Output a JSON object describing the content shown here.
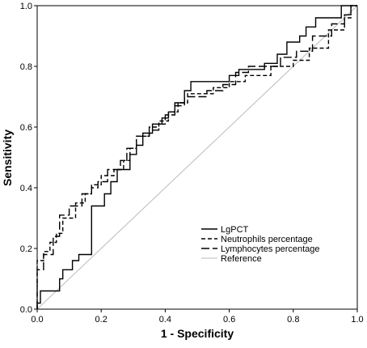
{
  "chart_data": {
    "type": "line",
    "title": "",
    "xlabel": "1 - Specificity",
    "ylabel": "Sensitivity",
    "xlim": [
      0,
      1
    ],
    "ylim": [
      0,
      1
    ],
    "xticks": [
      "0.0",
      "0.2",
      "0.4",
      "0.6",
      "0.8",
      "1.0"
    ],
    "yticks": [
      "0.0",
      "0.2",
      "0.4",
      "0.6",
      "0.8",
      "1.0"
    ],
    "grid": false,
    "legend_position": "bottom-right",
    "series": [
      {
        "name": "LgPCT",
        "style": "solid",
        "color": "#000000",
        "points": [
          [
            0,
            0
          ],
          [
            0,
            0.02
          ],
          [
            0.01,
            0.02
          ],
          [
            0.01,
            0.06
          ],
          [
            0.07,
            0.06
          ],
          [
            0.07,
            0.1
          ],
          [
            0.08,
            0.1
          ],
          [
            0.08,
            0.13
          ],
          [
            0.11,
            0.13
          ],
          [
            0.11,
            0.16
          ],
          [
            0.13,
            0.16
          ],
          [
            0.13,
            0.18
          ],
          [
            0.17,
            0.18
          ],
          [
            0.17,
            0.34
          ],
          [
            0.21,
            0.34
          ],
          [
            0.21,
            0.38
          ],
          [
            0.23,
            0.38
          ],
          [
            0.23,
            0.42
          ],
          [
            0.25,
            0.42
          ],
          [
            0.25,
            0.46
          ],
          [
            0.29,
            0.46
          ],
          [
            0.29,
            0.51
          ],
          [
            0.31,
            0.51
          ],
          [
            0.31,
            0.54
          ],
          [
            0.33,
            0.54
          ],
          [
            0.33,
            0.58
          ],
          [
            0.36,
            0.58
          ],
          [
            0.36,
            0.61
          ],
          [
            0.39,
            0.61
          ],
          [
            0.39,
            0.63
          ],
          [
            0.41,
            0.63
          ],
          [
            0.41,
            0.65
          ],
          [
            0.43,
            0.65
          ],
          [
            0.43,
            0.68
          ],
          [
            0.46,
            0.68
          ],
          [
            0.46,
            0.72
          ],
          [
            0.48,
            0.72
          ],
          [
            0.48,
            0.75
          ],
          [
            0.6,
            0.75
          ],
          [
            0.6,
            0.77
          ],
          [
            0.63,
            0.77
          ],
          [
            0.63,
            0.79
          ],
          [
            0.71,
            0.79
          ],
          [
            0.71,
            0.81
          ],
          [
            0.75,
            0.81
          ],
          [
            0.75,
            0.84
          ],
          [
            0.78,
            0.84
          ],
          [
            0.78,
            0.88
          ],
          [
            0.82,
            0.88
          ],
          [
            0.82,
            0.9
          ],
          [
            0.84,
            0.9
          ],
          [
            0.84,
            0.93
          ],
          [
            0.87,
            0.93
          ],
          [
            0.87,
            0.96
          ],
          [
            0.95,
            0.96
          ],
          [
            0.95,
            1.0
          ],
          [
            1,
            1.0
          ]
        ]
      },
      {
        "name": "Neutrophils percentage",
        "style": "dashed",
        "color": "#000000",
        "points": [
          [
            0,
            0
          ],
          [
            0,
            0.16
          ],
          [
            0.02,
            0.16
          ],
          [
            0.02,
            0.19
          ],
          [
            0.04,
            0.19
          ],
          [
            0.04,
            0.22
          ],
          [
            0.06,
            0.22
          ],
          [
            0.06,
            0.25
          ],
          [
            0.08,
            0.25
          ],
          [
            0.08,
            0.3
          ],
          [
            0.12,
            0.3
          ],
          [
            0.12,
            0.35
          ],
          [
            0.15,
            0.35
          ],
          [
            0.15,
            0.38
          ],
          [
            0.17,
            0.38
          ],
          [
            0.17,
            0.41
          ],
          [
            0.2,
            0.41
          ],
          [
            0.2,
            0.44
          ],
          [
            0.24,
            0.44
          ],
          [
            0.24,
            0.46
          ],
          [
            0.27,
            0.46
          ],
          [
            0.27,
            0.49
          ],
          [
            0.29,
            0.49
          ],
          [
            0.29,
            0.53
          ],
          [
            0.31,
            0.53
          ],
          [
            0.31,
            0.57
          ],
          [
            0.35,
            0.57
          ],
          [
            0.35,
            0.6
          ],
          [
            0.38,
            0.6
          ],
          [
            0.38,
            0.62
          ],
          [
            0.41,
            0.62
          ],
          [
            0.41,
            0.65
          ],
          [
            0.44,
            0.65
          ],
          [
            0.44,
            0.68
          ],
          [
            0.47,
            0.68
          ],
          [
            0.47,
            0.71
          ],
          [
            0.55,
            0.71
          ],
          [
            0.55,
            0.73
          ],
          [
            0.6,
            0.73
          ],
          [
            0.6,
            0.75
          ],
          [
            0.65,
            0.75
          ],
          [
            0.65,
            0.77
          ],
          [
            0.73,
            0.77
          ],
          [
            0.73,
            0.8
          ],
          [
            0.8,
            0.8
          ],
          [
            0.8,
            0.82
          ],
          [
            0.85,
            0.82
          ],
          [
            0.85,
            0.86
          ],
          [
            0.91,
            0.86
          ],
          [
            0.91,
            0.92
          ],
          [
            0.96,
            0.92
          ],
          [
            0.96,
            0.96
          ],
          [
            0.98,
            0.96
          ],
          [
            0.98,
            1.0
          ],
          [
            1,
            1.0
          ]
        ]
      },
      {
        "name": "Lymphocytes percentage",
        "style": "longdash",
        "color": "#000000",
        "points": [
          [
            0,
            0
          ],
          [
            0,
            0.13
          ],
          [
            0.02,
            0.13
          ],
          [
            0.02,
            0.18
          ],
          [
            0.05,
            0.18
          ],
          [
            0.05,
            0.24
          ],
          [
            0.07,
            0.24
          ],
          [
            0.07,
            0.31
          ],
          [
            0.1,
            0.31
          ],
          [
            0.1,
            0.34
          ],
          [
            0.14,
            0.34
          ],
          [
            0.14,
            0.38
          ],
          [
            0.17,
            0.38
          ],
          [
            0.17,
            0.4
          ],
          [
            0.19,
            0.4
          ],
          [
            0.19,
            0.42
          ],
          [
            0.22,
            0.42
          ],
          [
            0.22,
            0.46
          ],
          [
            0.26,
            0.46
          ],
          [
            0.26,
            0.49
          ],
          [
            0.28,
            0.49
          ],
          [
            0.28,
            0.53
          ],
          [
            0.31,
            0.53
          ],
          [
            0.31,
            0.57
          ],
          [
            0.35,
            0.57
          ],
          [
            0.35,
            0.59
          ],
          [
            0.38,
            0.59
          ],
          [
            0.38,
            0.61
          ],
          [
            0.4,
            0.61
          ],
          [
            0.4,
            0.64
          ],
          [
            0.43,
            0.64
          ],
          [
            0.43,
            0.67
          ],
          [
            0.46,
            0.67
          ],
          [
            0.46,
            0.7
          ],
          [
            0.53,
            0.7
          ],
          [
            0.53,
            0.72
          ],
          [
            0.58,
            0.72
          ],
          [
            0.58,
            0.74
          ],
          [
            0.62,
            0.74
          ],
          [
            0.62,
            0.78
          ],
          [
            0.66,
            0.78
          ],
          [
            0.66,
            0.8
          ],
          [
            0.76,
            0.8
          ],
          [
            0.76,
            0.83
          ],
          [
            0.81,
            0.83
          ],
          [
            0.81,
            0.85
          ],
          [
            0.86,
            0.85
          ],
          [
            0.86,
            0.9
          ],
          [
            0.92,
            0.9
          ],
          [
            0.92,
            0.94
          ],
          [
            0.96,
            0.94
          ],
          [
            0.96,
            0.97
          ],
          [
            0.98,
            0.97
          ],
          [
            0.98,
            1.0
          ],
          [
            1,
            1.0
          ]
        ]
      },
      {
        "name": "Reference",
        "style": "solid",
        "color": "#bbbbbb",
        "points": [
          [
            0,
            0
          ],
          [
            1,
            1
          ]
        ]
      }
    ]
  }
}
